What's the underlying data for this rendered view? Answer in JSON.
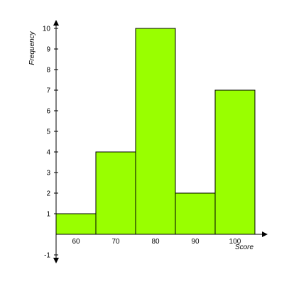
{
  "chart_data": {
    "type": "bar",
    "categories": [
      "60",
      "70",
      "80",
      "90",
      "100"
    ],
    "values": [
      1,
      4,
      10,
      2,
      7
    ],
    "xlabel": "Score",
    "ylabel": "Frequency",
    "ylim": [
      -1,
      10
    ],
    "y_ticks": [
      "-1",
      "1",
      "2",
      "3",
      "4",
      "5",
      "6",
      "7",
      "8",
      "9",
      "10"
    ],
    "grid": false,
    "colors": {
      "bar_fill": "#99ff00",
      "bar_stroke": "#000000",
      "axis": "#000000"
    }
  }
}
